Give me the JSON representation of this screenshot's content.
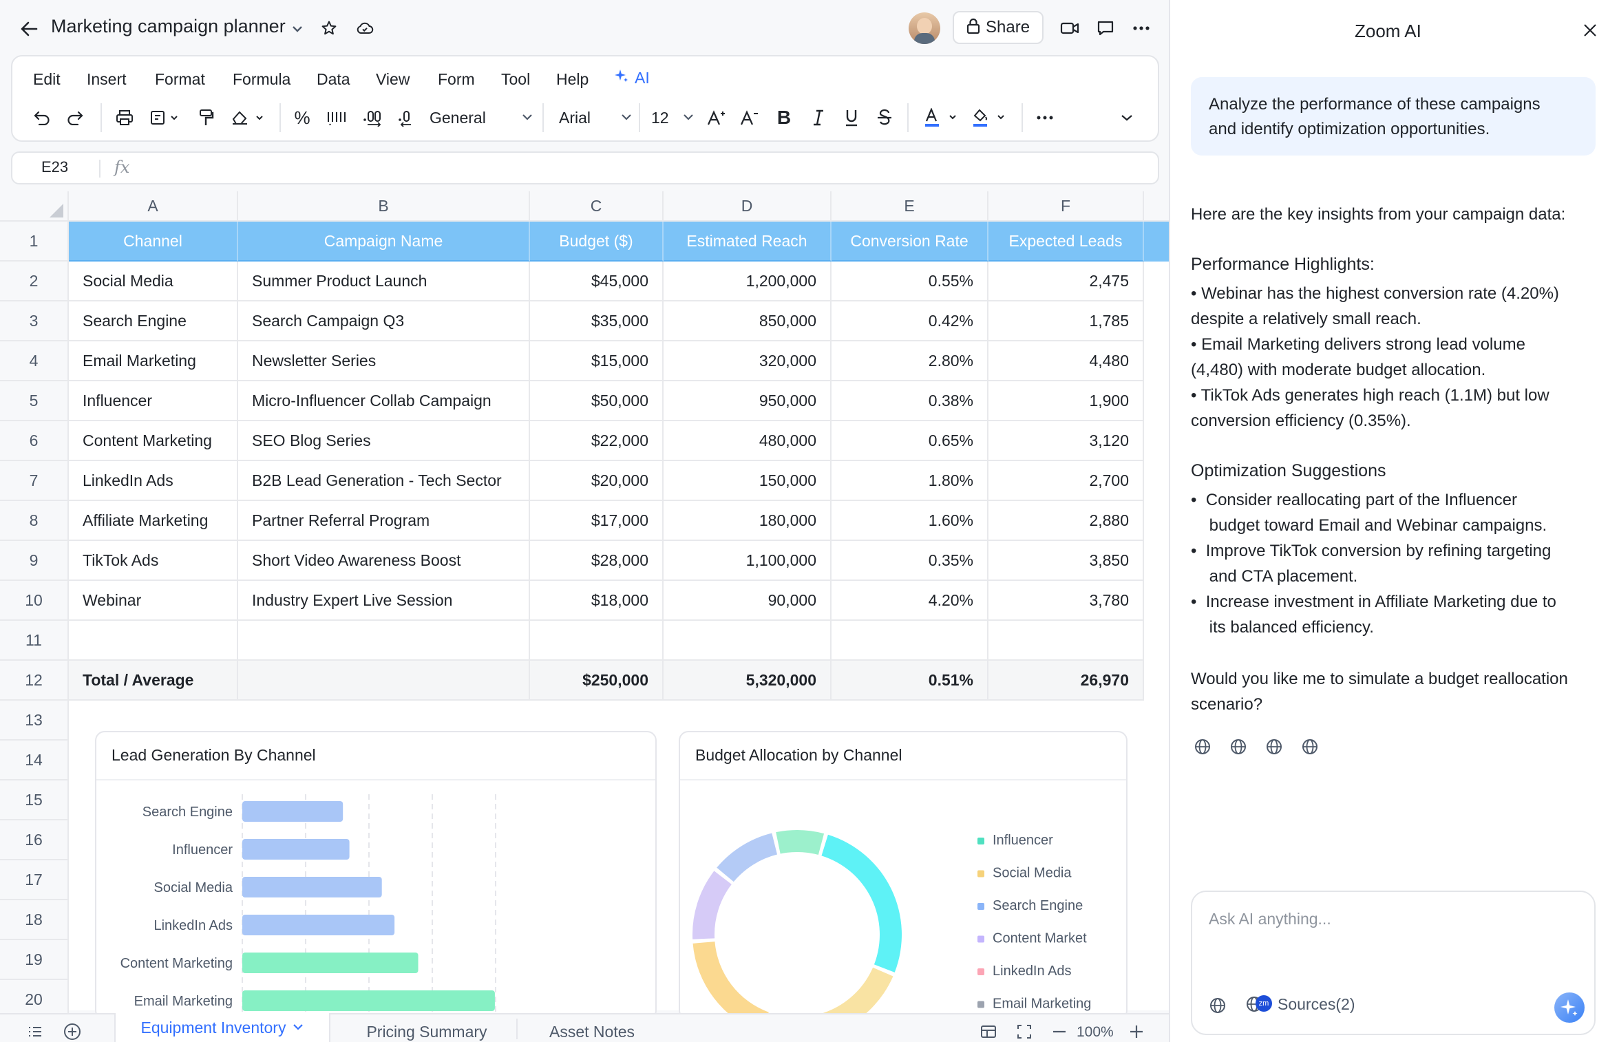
{
  "app": {
    "title": "Marketing campaign planner",
    "share_label": "Share"
  },
  "menu": [
    "Edit",
    "Insert",
    "Format",
    "Formula",
    "Data",
    "View",
    "Form",
    "Tool",
    "Help"
  ],
  "menu_ai": "AI",
  "toolbar": {
    "number_format": "General",
    "font": "Arial",
    "font_size": "12"
  },
  "formula": {
    "cell_ref": "E23",
    "fx": "fx"
  },
  "columns": [
    "A",
    "B",
    "C",
    "D",
    "E",
    "F"
  ],
  "row_numbers": [
    "1",
    "2",
    "3",
    "4",
    "5",
    "6",
    "7",
    "8",
    "9",
    "10",
    "11",
    "12",
    "13",
    "14",
    "15",
    "16",
    "17",
    "18",
    "19",
    "20"
  ],
  "table": {
    "headers": [
      "Channel",
      "Campaign Name",
      "Budget ($)",
      "Estimated Reach",
      "Conversion Rate",
      "Expected Leads"
    ],
    "rows": [
      [
        "Social Media",
        "Summer Product Launch",
        "$45,000",
        "1,200,000",
        "0.55%",
        "2,475"
      ],
      [
        "Search Engine",
        "Search Campaign Q3",
        "$35,000",
        "850,000",
        "0.42%",
        "1,785"
      ],
      [
        "Email Marketing",
        "Newsletter Series",
        "$15,000",
        "320,000",
        "2.80%",
        "4,480"
      ],
      [
        "Influencer",
        "Micro-Influencer Collab Campaign",
        "$50,000",
        "950,000",
        "0.38%",
        "1,900"
      ],
      [
        "Content Marketing",
        "SEO Blog Series",
        "$22,000",
        "480,000",
        "0.65%",
        "3,120"
      ],
      [
        "LinkedIn Ads",
        "B2B Lead Generation - Tech Sector",
        "$20,000",
        "150,000",
        "1.80%",
        "2,700"
      ],
      [
        "Affiliate Marketing",
        "Partner Referral Program",
        "$17,000",
        "180,000",
        "1.60%",
        "2,880"
      ],
      [
        "TikTok Ads",
        "Short Video Awareness Boost",
        "$28,000",
        "1,100,000",
        "0.35%",
        "3,850"
      ],
      [
        "Webinar",
        "Industry Expert Live Session",
        "$18,000",
        "90,000",
        "4.20%",
        "3,780"
      ]
    ],
    "total": [
      "Total / Average",
      "",
      "$250,000",
      "5,320,000",
      "0.51%",
      "26,970"
    ]
  },
  "chart_data": [
    {
      "type": "bar",
      "title": "Lead Generation By Channel",
      "categories": [
        "Search Engine",
        "Influencer",
        "Social Media",
        "LinkedIn Ads",
        "Content Marketing",
        "Email Marketing"
      ],
      "values": [
        1785,
        1900,
        2475,
        2700,
        3120,
        4480
      ],
      "colors": [
        "#a9c6f7",
        "#a9c6f7",
        "#a9c6f7",
        "#a9c6f7",
        "#86f0c4",
        "#86f0c4"
      ],
      "grid": true
    },
    {
      "type": "pie",
      "title": "Budget Allocation by Channel",
      "labels": [
        "Influencer",
        "Social Media",
        "Search Engine",
        "Content Market",
        "LinkedIn Ads",
        "Email Marketing"
      ],
      "values": [
        50000,
        45000,
        35000,
        22000,
        20000,
        15000
      ],
      "colors": [
        "#5ef2f6",
        "#f9e3a3",
        "#fbd990",
        "#d6cbf7",
        "#b4cbf6",
        "#9cf0cc"
      ],
      "legend_colors": [
        "#4fe0c0",
        "#f6d27a",
        "#8ab4f8",
        "#c4b5fd",
        "#fca5b5",
        "#9ca3af"
      ]
    }
  ],
  "sheet_tabs": [
    "Equipment Inventory",
    "Pricing Summary",
    "Asset Notes"
  ],
  "zoom": "100%",
  "panel": {
    "title": "Zoom AI",
    "user_msg": [
      "Analyze the performance of these campaigns",
      "and identify optimization opportunities."
    ],
    "intro": "Here are the key insights from your campaign data:",
    "h1": "Performance Highlights:",
    "highlights": [
      "• Webinar has the highest conversion rate (4.20%)",
      "despite a relatively small reach.",
      "• Email Marketing delivers strong lead volume",
      "(4,480) with moderate budget allocation.",
      "• TikTok Ads generates high reach (1.1M) but low",
      "conversion efficiency (0.35%)."
    ],
    "h2": "Optimization Suggestions",
    "suggestions": [
      "•  Consider reallocating part of the Influencer",
      "    budget toward Email and Webinar campaigns.",
      "•  Improve TikTok conversion by refining targeting",
      "    and CTA placement.",
      "•  Increase investment in Affiliate Marketing due to",
      "    its balanced efficiency."
    ],
    "question": [
      "Would you like me to simulate a budget reallocation",
      "scenario?"
    ],
    "input_placeholder": "Ask AI anything...",
    "sources": "Sources(2)"
  }
}
